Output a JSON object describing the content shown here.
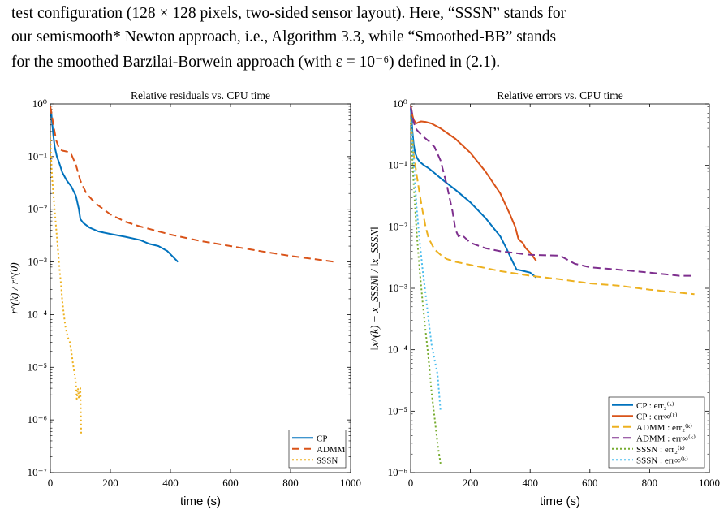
{
  "caption": {
    "lines": [
      "test configuration (128 × 128 pixels, two-sided sensor layout). Here, “SSSN” stands for",
      "our semismooth* Newton approach, i.e., Algorithm 3.3, while “Smoothed-BB” stands",
      "for the smoothed Barzilai-Borwein approach (with ε = 10⁻⁶) defined in (2.1)."
    ]
  },
  "chart_data": [
    {
      "type": "line",
      "title": "Relative residuals vs. CPU time",
      "xlabel": "time (s)",
      "ylabel": "r^(k) / r^(0)",
      "xlim": [
        0,
        1000
      ],
      "ylim": [
        1e-07,
        1
      ],
      "yscale": "log",
      "xticks": [
        0,
        200,
        400,
        600,
        800,
        1000
      ],
      "yticks": [
        {
          "value": 1,
          "label": "10⁰"
        },
        {
          "value": 0.1,
          "label": "10⁻¹"
        },
        {
          "value": 0.01,
          "label": "10⁻²"
        },
        {
          "value": 0.001,
          "label": "10⁻³"
        },
        {
          "value": 0.0001,
          "label": "10⁻⁴"
        },
        {
          "value": 1e-05,
          "label": "10⁻⁵"
        },
        {
          "value": 1e-06,
          "label": "10⁻⁶"
        },
        {
          "value": 1e-07,
          "label": "10⁻⁷"
        }
      ],
      "legend_position": "bottom-right",
      "series": [
        {
          "name": "CP",
          "color": "#0072bd",
          "dash": "solid",
          "x": [
            0,
            3,
            6,
            10,
            15,
            22,
            30,
            40,
            55,
            70,
            85,
            95,
            100,
            110,
            130,
            160,
            200,
            250,
            300,
            330,
            360,
            390,
            425
          ],
          "y": [
            0.8,
            0.7,
            0.45,
            0.25,
            0.15,
            0.1,
            0.075,
            0.05,
            0.035,
            0.027,
            0.018,
            0.01,
            0.0065,
            0.0055,
            0.0045,
            0.0038,
            0.0034,
            0.003,
            0.0026,
            0.0022,
            0.002,
            0.0016,
            0.001
          ]
        },
        {
          "name": "ADMM",
          "color": "#d95319",
          "dash": "dashed",
          "x": [
            0,
            5,
            12,
            20,
            30,
            40,
            55,
            70,
            85,
            100,
            120,
            150,
            200,
            250,
            300,
            400,
            500,
            600,
            700,
            800,
            950
          ],
          "y": [
            0.9,
            0.6,
            0.35,
            0.2,
            0.14,
            0.13,
            0.125,
            0.11,
            0.07,
            0.035,
            0.02,
            0.013,
            0.008,
            0.0058,
            0.0047,
            0.0033,
            0.0025,
            0.002,
            0.0016,
            0.0013,
            0.001
          ]
        },
        {
          "name": "SSSN",
          "color": "#edb120",
          "dash": "dotted",
          "x": [
            0,
            3,
            6,
            10,
            15,
            20,
            25,
            30,
            35,
            40,
            45,
            50,
            55,
            60,
            65,
            70,
            75,
            80,
            85,
            88,
            92,
            95,
            100,
            103
          ],
          "y": [
            0.25,
            0.08,
            0.04,
            0.02,
            0.009,
            0.004,
            0.0018,
            0.0008,
            0.0004,
            0.00018,
            0.0001,
            6e-05,
            4.5e-05,
            3.5e-05,
            3e-05,
            2e-05,
            1.2e-05,
            8e-06,
            5e-06,
            2.5e-06,
            4e-06,
            2.5e-06,
            4e-06,
            5e-07
          ]
        }
      ]
    },
    {
      "type": "line",
      "title": "Relative errors vs. CPU time",
      "xlabel": "time (s)",
      "ylabel": "‖x^(k) − x_SSSN‖ / ‖x_SSSN‖",
      "xlim": [
        0,
        1000
      ],
      "ylim": [
        1e-06,
        1
      ],
      "yscale": "log",
      "xticks": [
        0,
        200,
        400,
        600,
        800,
        1000
      ],
      "yticks": [
        {
          "value": 1,
          "label": "10⁰"
        },
        {
          "value": 0.1,
          "label": "10⁻¹"
        },
        {
          "value": 0.01,
          "label": "10⁻²"
        },
        {
          "value": 0.001,
          "label": "10⁻³"
        },
        {
          "value": 0.0001,
          "label": "10⁻⁴"
        },
        {
          "value": 1e-05,
          "label": "10⁻⁵"
        },
        {
          "value": 1e-06,
          "label": "10⁻⁶"
        }
      ],
      "legend_position": "bottom-right",
      "series": [
        {
          "name": "CP : err₂⁽ᵏ⁾",
          "color": "#0072bd",
          "dash": "solid",
          "x": [
            0,
            3,
            6,
            10,
            15,
            22,
            30,
            45,
            60,
            80,
            100,
            150,
            200,
            250,
            300,
            320,
            340,
            355,
            360,
            380,
            400,
            420
          ],
          "y": [
            0.85,
            0.6,
            0.35,
            0.22,
            0.16,
            0.13,
            0.115,
            0.1,
            0.09,
            0.075,
            0.062,
            0.04,
            0.025,
            0.014,
            0.007,
            0.0045,
            0.0028,
            0.002,
            0.002,
            0.0019,
            0.0018,
            0.0015
          ]
        },
        {
          "name": "CP : err∞⁽ᵏ⁾",
          "color": "#d95319",
          "dash": "solid",
          "x": [
            0,
            3,
            6,
            10,
            18,
            25,
            35,
            50,
            70,
            100,
            150,
            200,
            250,
            300,
            330,
            350,
            360,
            365,
            375,
            385,
            400,
            420
          ],
          "y": [
            0.95,
            0.8,
            0.65,
            0.55,
            0.48,
            0.5,
            0.52,
            0.51,
            0.48,
            0.4,
            0.27,
            0.16,
            0.08,
            0.035,
            0.017,
            0.01,
            0.0065,
            0.006,
            0.0055,
            0.0045,
            0.0038,
            0.0028
          ]
        },
        {
          "name": "ADMM : err₂⁽ᵏ⁾",
          "color": "#edb120",
          "dash": "dashed",
          "x": [
            0,
            5,
            10,
            20,
            30,
            40,
            50,
            60,
            80,
            100,
            120,
            150,
            200,
            300,
            400,
            500,
            600,
            700,
            800,
            950
          ],
          "y": [
            0.6,
            0.3,
            0.15,
            0.07,
            0.035,
            0.018,
            0.01,
            0.0065,
            0.0043,
            0.0035,
            0.003,
            0.0027,
            0.0024,
            0.0019,
            0.0016,
            0.0014,
            0.0012,
            0.0011,
            0.00095,
            0.0008
          ]
        },
        {
          "name": "ADMM : err∞⁽ᵏ⁾",
          "color": "#7e2f8e",
          "dash": "dashed",
          "x": [
            0,
            5,
            10,
            20,
            40,
            60,
            80,
            100,
            120,
            140,
            150,
            160,
            170,
            200,
            250,
            300,
            400,
            500,
            550,
            600,
            700,
            800,
            900,
            950
          ],
          "y": [
            0.9,
            0.7,
            0.5,
            0.38,
            0.3,
            0.25,
            0.2,
            0.12,
            0.05,
            0.018,
            0.009,
            0.007,
            0.0075,
            0.0055,
            0.0045,
            0.004,
            0.0035,
            0.0034,
            0.0025,
            0.0022,
            0.002,
            0.0018,
            0.0016,
            0.0016
          ]
        },
        {
          "name": "SSSN : err₂⁽ᵏ⁾",
          "color": "#77ac30",
          "dash": "dotted",
          "x": [
            0,
            5,
            10,
            15,
            20,
            30,
            40,
            50,
            60,
            70,
            80,
            90,
            95,
            100,
            103
          ],
          "y": [
            0.5,
            0.15,
            0.05,
            0.02,
            0.008,
            0.002,
            0.0006,
            0.0002,
            7e-05,
            2e-05,
            8e-06,
            3e-06,
            2e-06,
            1.4e-06,
            1.3e-06
          ]
        },
        {
          "name": "SSSN : err∞⁽ᵏ⁾",
          "color": "#4dbeee",
          "dash": "dotted",
          "x": [
            0,
            5,
            10,
            15,
            20,
            30,
            40,
            50,
            60,
            70,
            80,
            90,
            95,
            100
          ],
          "y": [
            0.7,
            0.3,
            0.12,
            0.05,
            0.02,
            0.006,
            0.002,
            0.0008,
            0.0003,
            0.00012,
            7e-05,
            4e-05,
            2e-05,
            1e-05
          ]
        }
      ]
    }
  ]
}
